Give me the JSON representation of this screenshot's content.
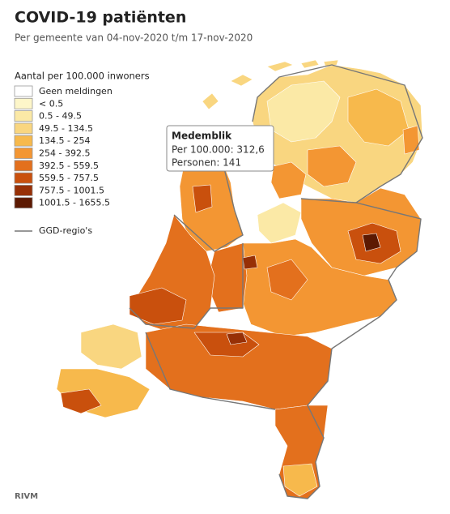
{
  "header": {
    "title": "COVID-19 patiënten",
    "subtitle": "Per gemeente van 04-nov-2020 t/m 17-nov-2020"
  },
  "legend": {
    "title": "Aantal per 100.000 inwoners",
    "items": [
      {
        "label": "Geen meldingen",
        "color": "#ffffff"
      },
      {
        "label": "< 0.5",
        "color": "#fdf6c9"
      },
      {
        "label": "0.5 - 49.5",
        "color": "#fbe9a6"
      },
      {
        "label": "49.5 - 134.5",
        "color": "#f9d680"
      },
      {
        "label": "134.5 - 254",
        "color": "#f7b94c"
      },
      {
        "label": "254 - 392.5",
        "color": "#f39633"
      },
      {
        "label": "392.5 - 559.5",
        "color": "#e3701d"
      },
      {
        "label": "559.5 - 757.5",
        "color": "#c9500d"
      },
      {
        "label": "757.5 - 1001.5",
        "color": "#973006"
      },
      {
        "label": "1001.5 - 1655.5",
        "color": "#5c1902"
      }
    ],
    "boundary": "GGD-regio's"
  },
  "tooltip": {
    "name": "Medemblik",
    "lines": [
      "Per 100.000: 312,6",
      "Personen: 141"
    ]
  },
  "footer": {
    "source": "RIVM"
  }
}
